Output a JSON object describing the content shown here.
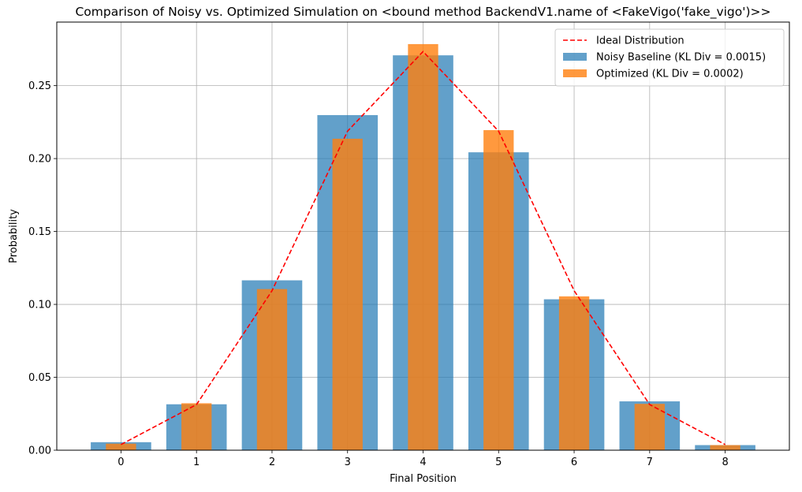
{
  "chart_data": {
    "type": "bar",
    "title": "Comparison of Noisy vs. Optimized Simulation on <bound method BackendV1.name of <FakeVigo('fake_vigo')>>",
    "xlabel": "Final Position",
    "ylabel": "Probability",
    "categories": [
      "0",
      "1",
      "2",
      "3",
      "4",
      "5",
      "6",
      "7",
      "8"
    ],
    "x": [
      0,
      1,
      2,
      3,
      4,
      5,
      6,
      7,
      8
    ],
    "xlim": [
      -0.85,
      8.85
    ],
    "ylim": [
      0,
      0.2936
    ],
    "yticks": [
      0.0,
      0.05,
      0.1,
      0.15,
      0.2,
      0.25
    ],
    "ytick_labels": [
      "0.00",
      "0.05",
      "0.10",
      "0.15",
      "0.20",
      "0.25"
    ],
    "grid": true,
    "legend_position": "top-right",
    "series": [
      {
        "name": "Ideal Distribution",
        "kind": "line",
        "style": "dashed",
        "color": "#ff0000",
        "values": [
          0.0039,
          0.0313,
          0.1094,
          0.2188,
          0.2734,
          0.2188,
          0.1094,
          0.0313,
          0.0039
        ]
      },
      {
        "name": "Noisy Baseline (KL Div = 0.0015)",
        "kind": "bar",
        "color": "#1f77b4",
        "opacity": 0.7,
        "values": [
          0.0055,
          0.0315,
          0.1165,
          0.2298,
          0.2708,
          0.2043,
          0.1035,
          0.0335,
          0.0035
        ]
      },
      {
        "name": "Optimized (KL Div = 0.0002)",
        "kind": "bar",
        "color": "#ff7f0e",
        "opacity": 0.8,
        "values": [
          0.0045,
          0.0322,
          0.1105,
          0.2136,
          0.2785,
          0.2195,
          0.1055,
          0.0318,
          0.0035
        ]
      }
    ]
  }
}
